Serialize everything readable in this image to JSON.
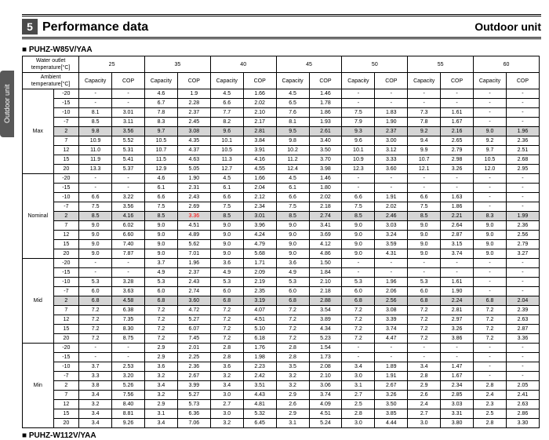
{
  "header": {
    "section_number": "5",
    "section_title": "Performance data",
    "unit_label": "Outdoor unit"
  },
  "side_tab": "Outdoor unit",
  "model_top": "PUHZ-W85V/YAA",
  "model_bottom": "PUHZ-W112V/YAA",
  "labels": {
    "water_outlet": "Water outlet temperature[°C]",
    "ambient": "Ambient temperature[°C]",
    "capacity": "Capacity",
    "cop": "COP"
  },
  "columns": [
    25,
    35,
    40,
    45,
    50,
    55,
    60
  ],
  "modes": [
    {
      "name": "Max",
      "rows": [
        {
          "amb": -20,
          "v": [
            "-",
            "-",
            "4.6",
            "1.9",
            "4.5",
            "1.66",
            "4.5",
            "1.46",
            "-",
            "-",
            "-",
            "-",
            "-",
            "-"
          ]
        },
        {
          "amb": -15,
          "v": [
            "-",
            "-",
            "6.7",
            "2.28",
            "6.6",
            "2.02",
            "6.5",
            "1.78",
            "-",
            "-",
            "-",
            "-",
            "-",
            "-"
          ]
        },
        {
          "amb": -10,
          "v": [
            "8.1",
            "3.01",
            "7.8",
            "2.37",
            "7.7",
            "2.10",
            "7.6",
            "1.86",
            "7.5",
            "1.83",
            "7.3",
            "1.61",
            "-",
            "-"
          ]
        },
        {
          "amb": -7,
          "v": [
            "8.5",
            "3.11",
            "8.3",
            "2.45",
            "8.2",
            "2.17",
            "8.1",
            "1.93",
            "7.9",
            "1.90",
            "7.8",
            "1.67",
            "-",
            "-"
          ]
        },
        {
          "amb": 2,
          "hl": true,
          "v": [
            "9.8",
            "3.56",
            "9.7",
            "3.08",
            "9.6",
            "2.81",
            "9.5",
            "2.61",
            "9.3",
            "2.37",
            "9.2",
            "2.16",
            "9.0",
            "1.96"
          ]
        },
        {
          "amb": 7,
          "v": [
            "10.9",
            "5.52",
            "10.5",
            "4.35",
            "10.1",
            "3.84",
            "9.8",
            "3.40",
            "9.6",
            "3.00",
            "9.4",
            "2.65",
            "9.2",
            "2.36"
          ]
        },
        {
          "amb": 12,
          "v": [
            "11.0",
            "5.31",
            "10.7",
            "4.37",
            "10.5",
            "3.91",
            "10.2",
            "3.50",
            "10.1",
            "3.12",
            "9.9",
            "2.79",
            "9.7",
            "2.51"
          ]
        },
        {
          "amb": 15,
          "v": [
            "11.9",
            "5.41",
            "11.5",
            "4.63",
            "11.3",
            "4.16",
            "11.2",
            "3.70",
            "10.9",
            "3.33",
            "10.7",
            "2.98",
            "10.5",
            "2.68"
          ]
        },
        {
          "amb": 20,
          "v": [
            "13.3",
            "5.37",
            "12.9",
            "5.05",
            "12.7",
            "4.55",
            "12.4",
            "3.98",
            "12.3",
            "3.60",
            "12.1",
            "3.26",
            "12.0",
            "2.95"
          ]
        }
      ]
    },
    {
      "name": "Nominal",
      "rows": [
        {
          "amb": -20,
          "v": [
            "-",
            "-",
            "4.6",
            "1.90",
            "4.5",
            "1.66",
            "4.5",
            "1.46",
            "-",
            "-",
            "-",
            "-",
            "-",
            "-"
          ]
        },
        {
          "amb": -15,
          "v": [
            "-",
            "-",
            "6.1",
            "2.31",
            "6.1",
            "2.04",
            "6.1",
            "1.80",
            "-",
            "-",
            "-",
            "-",
            "-",
            "-"
          ]
        },
        {
          "amb": -10,
          "v": [
            "6.6",
            "3.22",
            "6.6",
            "2.43",
            "6.6",
            "2.12",
            "6.6",
            "2.02",
            "6.6",
            "1.91",
            "6.6",
            "1.63",
            "-",
            "-"
          ]
        },
        {
          "amb": -7,
          "v": [
            "7.5",
            "3.56",
            "7.5",
            "2.69",
            "7.5",
            "2.34",
            "7.5",
            "2.18",
            "7.5",
            "2.02",
            "7.5",
            "1.86",
            "-",
            "-"
          ]
        },
        {
          "amb": 2,
          "hl": true,
          "v": [
            "8.5",
            "4.16",
            "8.5",
            "3.36",
            "8.5",
            "3.01",
            "8.5",
            "2.74",
            "8.5",
            "2.46",
            "8.5",
            "2.21",
            "8.3",
            "1.99"
          ],
          "red_idx": [
            3
          ]
        },
        {
          "amb": 7,
          "v": [
            "9.0",
            "6.02",
            "9.0",
            "4.51",
            "9.0",
            "3.96",
            "9.0",
            "3.41",
            "9.0",
            "3.03",
            "9.0",
            "2.64",
            "9.0",
            "2.36"
          ]
        },
        {
          "amb": 12,
          "v": [
            "9.0",
            "6.60",
            "9.0",
            "4.89",
            "9.0",
            "4.24",
            "9.0",
            "3.69",
            "9.0",
            "3.24",
            "9.0",
            "2.87",
            "9.0",
            "2.56"
          ]
        },
        {
          "amb": 15,
          "v": [
            "9.0",
            "7.40",
            "9.0",
            "5.62",
            "9.0",
            "4.79",
            "9.0",
            "4.12",
            "9.0",
            "3.59",
            "9.0",
            "3.15",
            "9.0",
            "2.79"
          ]
        },
        {
          "amb": 20,
          "v": [
            "9.0",
            "7.87",
            "9.0",
            "7.01",
            "9.0",
            "5.68",
            "9.0",
            "4.86",
            "9.0",
            "4.31",
            "9.0",
            "3.74",
            "9.0",
            "3.27"
          ]
        }
      ]
    },
    {
      "name": "Mid",
      "rows": [
        {
          "amb": -20,
          "v": [
            "-",
            "-",
            "3.7",
            "1.96",
            "3.6",
            "1.71",
            "3.6",
            "1.50",
            "-",
            "-",
            "-",
            "-",
            "-",
            "-"
          ]
        },
        {
          "amb": -15,
          "v": [
            "-",
            "-",
            "4.9",
            "2.37",
            "4.9",
            "2.09",
            "4.9",
            "1.84",
            "-",
            "-",
            "-",
            "-",
            "-",
            "-"
          ]
        },
        {
          "amb": -10,
          "v": [
            "5.3",
            "3.28",
            "5.3",
            "2.43",
            "5.3",
            "2.19",
            "5.3",
            "2.10",
            "5.3",
            "1.96",
            "5.3",
            "1.61",
            "-",
            "-"
          ]
        },
        {
          "amb": -7,
          "v": [
            "6.0",
            "3.63",
            "6.0",
            "2.74",
            "6.0",
            "2.35",
            "6.0",
            "2.18",
            "6.0",
            "2.06",
            "6.0",
            "1.90",
            "-",
            "-"
          ]
        },
        {
          "amb": 2,
          "hl": true,
          "v": [
            "6.8",
            "4.58",
            "6.8",
            "3.60",
            "6.8",
            "3.19",
            "6.8",
            "2.88",
            "6.8",
            "2.56",
            "6.8",
            "2.24",
            "6.8",
            "2.04"
          ]
        },
        {
          "amb": 7,
          "v": [
            "7.2",
            "6.38",
            "7.2",
            "4.72",
            "7.2",
            "4.07",
            "7.2",
            "3.54",
            "7.2",
            "3.08",
            "7.2",
            "2.81",
            "7.2",
            "2.39"
          ]
        },
        {
          "amb": 12,
          "v": [
            "7.2",
            "7.35",
            "7.2",
            "5.27",
            "7.2",
            "4.51",
            "7.2",
            "3.89",
            "7.2",
            "3.39",
            "7.2",
            "2.97",
            "7.2",
            "2.63"
          ]
        },
        {
          "amb": 15,
          "v": [
            "7.2",
            "8.30",
            "7.2",
            "6.07",
            "7.2",
            "5.10",
            "7.2",
            "4.34",
            "7.2",
            "3.74",
            "7.2",
            "3.26",
            "7.2",
            "2.87"
          ]
        },
        {
          "amb": 20,
          "v": [
            "7.2",
            "8.75",
            "7.2",
            "7.45",
            "7.2",
            "6.18",
            "7.2",
            "5.23",
            "7.2",
            "4.47",
            "7.2",
            "3.86",
            "7.2",
            "3.36"
          ]
        }
      ]
    },
    {
      "name": "Min",
      "rows": [
        {
          "amb": -20,
          "v": [
            "-",
            "-",
            "2.9",
            "2.01",
            "2.8",
            "1.76",
            "2.8",
            "1.54",
            "-",
            "-",
            "-",
            "-",
            "-",
            "-"
          ]
        },
        {
          "amb": -15,
          "v": [
            "-",
            "-",
            "2.9",
            "2.25",
            "2.8",
            "1.98",
            "2.8",
            "1.73",
            "-",
            "-",
            "-",
            "-",
            "-",
            "-"
          ]
        },
        {
          "amb": -10,
          "v": [
            "3.7",
            "2.53",
            "3.6",
            "2.36",
            "3.6",
            "2.23",
            "3.5",
            "2.08",
            "3.4",
            "1.89",
            "3.4",
            "1.47",
            "-",
            "-"
          ]
        },
        {
          "amb": -7,
          "v": [
            "3.3",
            "3.20",
            "3.2",
            "2.67",
            "3.2",
            "2.42",
            "3.2",
            "2.10",
            "3.0",
            "1.91",
            "2.8",
            "1.67",
            "-",
            "-"
          ]
        },
        {
          "amb": 2,
          "v": [
            "3.8",
            "5.26",
            "3.4",
            "3.99",
            "3.4",
            "3.51",
            "3.2",
            "3.06",
            "3.1",
            "2.67",
            "2.9",
            "2.34",
            "2.8",
            "2.05"
          ]
        },
        {
          "amb": 7,
          "v": [
            "3.4",
            "7.56",
            "3.2",
            "5.27",
            "3.0",
            "4.43",
            "2.9",
            "3.74",
            "2.7",
            "3.26",
            "2.6",
            "2.85",
            "2.4",
            "2.41"
          ]
        },
        {
          "amb": 12,
          "v": [
            "3.2",
            "8.40",
            "2.9",
            "5.73",
            "2.7",
            "4.81",
            "2.6",
            "4.09",
            "2.5",
            "3.50",
            "2.4",
            "3.03",
            "2.3",
            "2.63"
          ]
        },
        {
          "amb": 15,
          "v": [
            "3.4",
            "8.81",
            "3.1",
            "6.36",
            "3.0",
            "5.32",
            "2.9",
            "4.51",
            "2.8",
            "3.85",
            "2.7",
            "3.31",
            "2.5",
            "2.86"
          ]
        },
        {
          "amb": 20,
          "v": [
            "3.4",
            "9.26",
            "3.4",
            "7.06",
            "3.2",
            "6.45",
            "3.1",
            "5.24",
            "3.0",
            "4.44",
            "3.0",
            "3.80",
            "2.8",
            "3.30"
          ]
        }
      ]
    }
  ]
}
